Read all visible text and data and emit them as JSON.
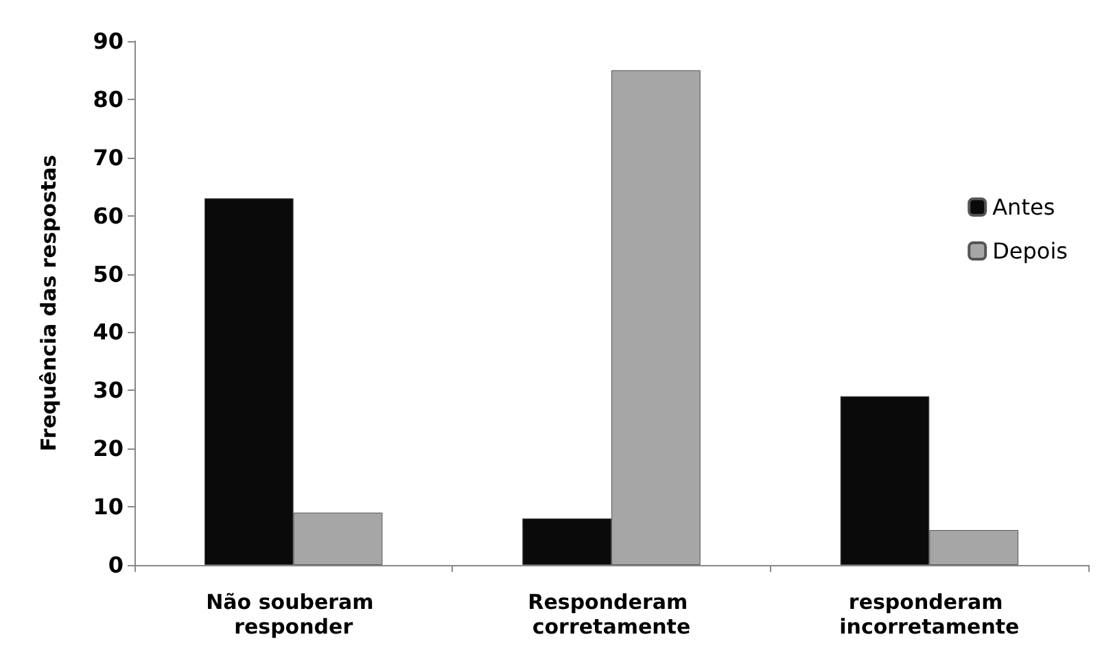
{
  "chart_data": {
    "type": "bar",
    "ylabel": "Frequência das respostas",
    "categories": [
      "Não souberam responder",
      "Responderam corretamente",
      "responderam incorretamente"
    ],
    "series": [
      {
        "name": "Antes",
        "color": "#0a0a0a",
        "values": [
          63,
          8,
          29
        ]
      },
      {
        "name": "Depois",
        "color": "#a6a6a6",
        "values": [
          9,
          85,
          6
        ]
      }
    ],
    "ylim": [
      0,
      90
    ],
    "yticks": [
      0,
      10,
      20,
      30,
      40,
      50,
      60,
      70,
      80,
      90
    ],
    "grid": false,
    "legend": "right"
  }
}
